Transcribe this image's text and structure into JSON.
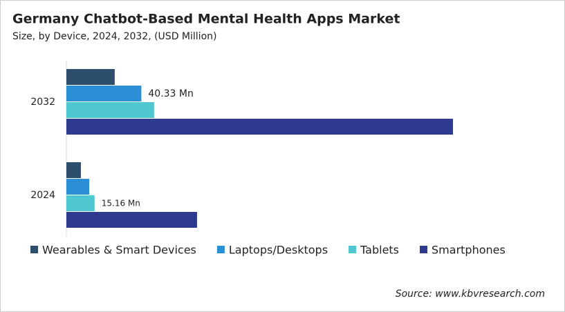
{
  "chart_data": {
    "type": "hbar",
    "title": "Germany Chatbot-Based Mental Health Apps Market",
    "subtitle": "Size, by Device, 2024, 2032, (USD Million)",
    "source": "Source: www.kbvresearch.com",
    "categories": [
      "2032",
      "2024"
    ],
    "series": [
      {
        "name": "Wearables & Smart Devices",
        "color": "#2e4e6e",
        "values": [
          26.0,
          7.8
        ]
      },
      {
        "name": "Laptops/Desktops",
        "color": "#2a8fd4",
        "values": [
          40.33,
          12.3
        ],
        "value_labels": [
          "40.33 Mn",
          null
        ]
      },
      {
        "name": "Tablets",
        "color": "#4fc7d0",
        "values": [
          47.2,
          15.16
        ],
        "value_labels": [
          null,
          "15.16 Mn"
        ]
      },
      {
        "name": "Smartphones",
        "color": "#2e3a8f",
        "values": [
          208.0,
          70.3
        ]
      }
    ]
  }
}
